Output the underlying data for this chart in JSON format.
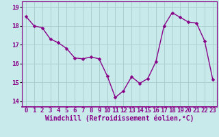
{
  "x": [
    0,
    1,
    2,
    3,
    4,
    5,
    6,
    7,
    8,
    9,
    10,
    11,
    12,
    13,
    14,
    15,
    16,
    17,
    18,
    19,
    20,
    21,
    22,
    23
  ],
  "y": [
    18.5,
    18.0,
    17.9,
    17.3,
    17.1,
    16.8,
    16.3,
    16.25,
    16.35,
    16.25,
    15.35,
    14.2,
    14.55,
    15.3,
    14.95,
    15.2,
    16.1,
    18.0,
    18.7,
    18.45,
    18.2,
    18.15,
    17.2,
    15.15
  ],
  "line_color": "#880088",
  "marker": "D",
  "marker_size": 2.5,
  "background_color": "#c8eaea",
  "grid_color": "#aad0d0",
  "xlabel": "Windchill (Refroidissement éolien,°C)",
  "xlim": [
    -0.5,
    23.5
  ],
  "ylim": [
    13.7,
    19.3
  ],
  "yticks": [
    14,
    15,
    16,
    17,
    18,
    19
  ],
  "xticks": [
    0,
    1,
    2,
    3,
    4,
    5,
    6,
    7,
    8,
    9,
    10,
    11,
    12,
    13,
    14,
    15,
    16,
    17,
    18,
    19,
    20,
    21,
    22,
    23
  ],
  "tick_label_fontsize": 6.5,
  "xlabel_fontsize": 7.0,
  "line_width": 1.0,
  "spine_color": "#880088",
  "bottom_spine_color": "#880088"
}
